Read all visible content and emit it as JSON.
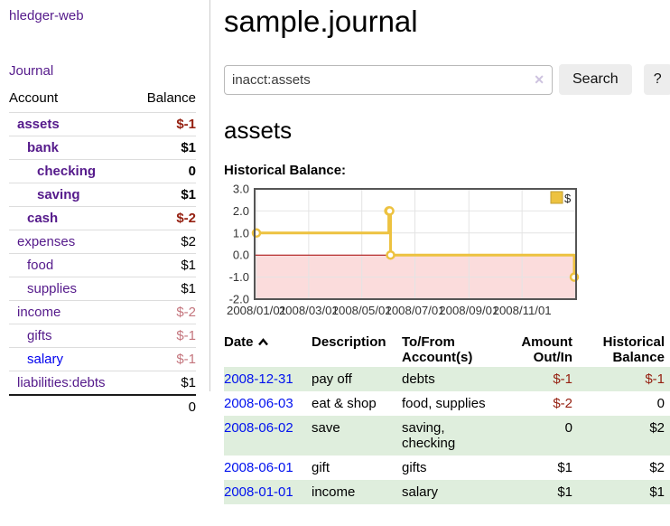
{
  "sidebar": {
    "brand": "hledger-web",
    "journal": "Journal",
    "table": {
      "headers": {
        "account": "Account",
        "balance": "Balance"
      },
      "accounts": [
        {
          "name": "assets",
          "balance": "$-1"
        },
        {
          "name": "bank",
          "balance": "$1"
        },
        {
          "name": "checking",
          "balance": "0"
        },
        {
          "name": "saving",
          "balance": "$1"
        },
        {
          "name": "cash",
          "balance": "$-2"
        },
        {
          "name": "expenses",
          "balance": "$2"
        },
        {
          "name": "food",
          "balance": "$1"
        },
        {
          "name": "supplies",
          "balance": "$1"
        },
        {
          "name": "income",
          "balance": "$-2"
        },
        {
          "name": "gifts",
          "balance": "$-1"
        },
        {
          "name": "salary",
          "balance": "$-1"
        },
        {
          "name": "liabilities:debts",
          "balance": "$1"
        }
      ],
      "total": "0"
    }
  },
  "main": {
    "title": "sample.journal",
    "search": {
      "value": "inacct:assets",
      "clear_icon": "✕",
      "button": "Search",
      "help_button": "?"
    },
    "section_title": "assets",
    "chart_label": "Historical Balance:",
    "transactions": {
      "headers": {
        "date": "Date",
        "description": "Description",
        "accounts": "To/From Account(s)",
        "amount": "Amount Out/In",
        "balance": "Historical Balance"
      },
      "rows": [
        {
          "date": "2008-12-31",
          "description": "pay off",
          "accounts": "debts",
          "amount": "$-1",
          "balance": "$-1"
        },
        {
          "date": "2008-06-03",
          "description": "eat & shop",
          "accounts": "food, supplies",
          "amount": "$-2",
          "balance": "0"
        },
        {
          "date": "2008-06-02",
          "description": "save",
          "accounts": "saving, checking",
          "amount": "0",
          "balance": "$2"
        },
        {
          "date": "2008-06-01",
          "description": "gift",
          "accounts": "gifts",
          "amount": "$1",
          "balance": "$2"
        },
        {
          "date": "2008-01-01",
          "description": "income",
          "accounts": "salary",
          "amount": "$1",
          "balance": "$1"
        }
      ]
    }
  },
  "chart_data": {
    "type": "line",
    "title": "Historical Balance:",
    "step": true,
    "legend": "$",
    "legend_position": "top-right",
    "series": [
      {
        "name": "$",
        "points": [
          [
            "2008-01-01",
            1
          ],
          [
            "2008-06-01",
            2
          ],
          [
            "2008-06-02",
            2
          ],
          [
            "2008-06-03",
            0
          ],
          [
            "2008-12-31",
            -1
          ]
        ]
      }
    ],
    "x_ticks": [
      "2008/01/01",
      "2008/03/01",
      "2008/05/01",
      "2008/07/01",
      "2008/09/01",
      "2008/11/01"
    ],
    "y_ticks": [
      3,
      2,
      1,
      0,
      -1,
      -2
    ],
    "xlim": [
      "2008-01-01",
      "2008-12-31"
    ],
    "ylim": [
      -2,
      3
    ],
    "grid": true,
    "negative_region_shaded": true
  },
  "colors": {
    "link_purple": "#551a8b",
    "link_blue": "#0000ee",
    "negative_strong": "#952011",
    "negative_soft": "#c4757d",
    "row_green": "#dfeedd",
    "series_gold": "#edc240",
    "negative_fill": "#fbdcdc",
    "zero_line": "#a40000",
    "grid_line": "#e4e4e4",
    "chart_border": "#555555"
  }
}
